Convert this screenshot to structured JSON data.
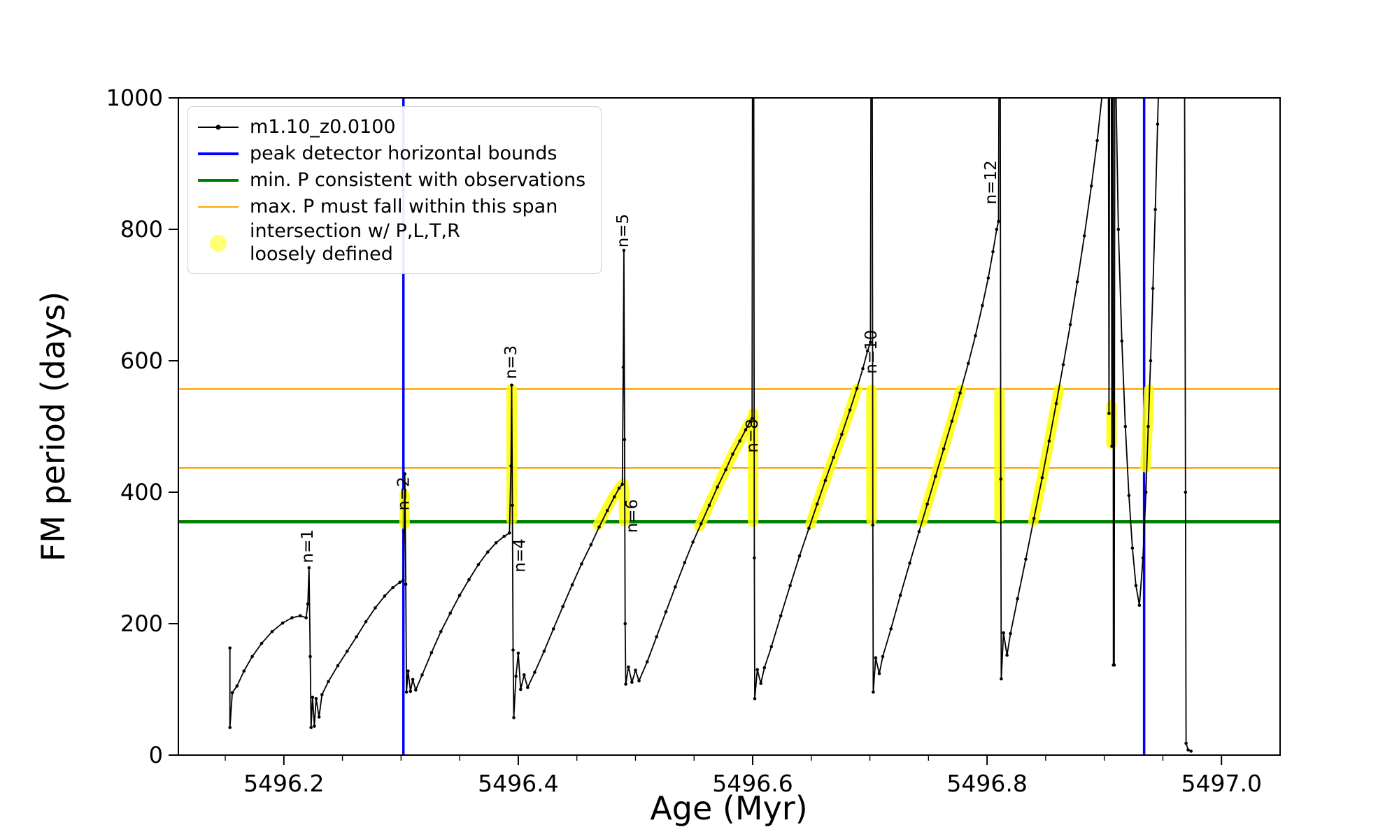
{
  "chart_data": {
    "type": "line",
    "title": "",
    "xlabel": "Age (Myr)",
    "ylabel": "FM period (days)",
    "xlim": [
      5496.11,
      5497.05
    ],
    "ylim": [
      0,
      1000
    ],
    "xticks": [
      5496.2,
      5496.4,
      5496.6,
      5496.8,
      5497.0
    ],
    "xtick_labels": [
      "5496.2",
      "5496.4",
      "5496.6",
      "5496.8",
      "5497.0"
    ],
    "xminor_step": 0.05,
    "yticks": [
      0,
      200,
      400,
      600,
      800,
      1000
    ],
    "ytick_labels": [
      "0",
      "200",
      "400",
      "600",
      "800",
      "1000"
    ],
    "grid": false,
    "legend": {
      "position": "upper-left",
      "entries": [
        {
          "label": "m1.10_z0.0100",
          "type": "line-dot",
          "color": "#000000",
          "width": 2
        },
        {
          "label": "peak detector horizontal bounds",
          "type": "line",
          "color": "#0000ff",
          "width": 4
        },
        {
          "label": "min. P consistent with observations",
          "type": "line",
          "color": "#008000",
          "width": 4.5
        },
        {
          "label": "max. P must fall within this span",
          "type": "line",
          "color": "#ffa500",
          "width": 2.5
        },
        {
          "label": "intersection w/ P,L,T,R loosely defined",
          "label_lines": [
            "intersection w/ P,L,T,R",
            "loosely defined"
          ],
          "type": "marker",
          "color": "#ffff00"
        }
      ]
    },
    "vlines": [
      {
        "name": "peak-detector-left-bound",
        "x": 5496.302,
        "color": "#0000ff",
        "width": 3.5
      },
      {
        "name": "peak-detector-right-bound",
        "x": 5496.934,
        "color": "#0000ff",
        "width": 3.5
      }
    ],
    "hlines": [
      {
        "name": "min-p-observations",
        "y": 355,
        "color": "#008000",
        "width": 4.5
      },
      {
        "name": "max-p-span-lower",
        "y": 437,
        "color": "#ffa500",
        "width": 2.5
      },
      {
        "name": "max-p-span-upper",
        "y": 557,
        "color": "#ffa500",
        "width": 2.5
      }
    ],
    "annotations_rotation": 90,
    "annotations": [
      {
        "text": "n=1",
        "x": 5496.2245,
        "y": 292
      },
      {
        "text": "n=2",
        "x": 5496.3068,
        "y": 372
      },
      {
        "text": "n=3",
        "x": 5496.3982,
        "y": 572
      },
      {
        "text": "n=4",
        "x": 5496.4058,
        "y": 278
      },
      {
        "text": "n=5",
        "x": 5496.4938,
        "y": 772
      },
      {
        "text": "n=6",
        "x": 5496.5015,
        "y": 338
      },
      {
        "text": "n=8",
        "x": 5496.6042,
        "y": 460
      },
      {
        "text": "n=10",
        "x": 5496.7055,
        "y": 580
      },
      {
        "text": "n=12",
        "x": 5496.8078,
        "y": 838
      }
    ],
    "highlight_segments": {
      "label": "intersection w/ P,L,T,R loosely defined",
      "color": "#ffff00",
      "opacity": 0.85,
      "width": 15,
      "segments": [
        [
          [
            5496.303,
            352
          ],
          [
            5496.303,
            396
          ]
        ],
        [
          [
            5496.3944,
            358
          ],
          [
            5496.3944,
            557
          ]
        ],
        [
          [
            5496.468,
            350
          ],
          [
            5496.476,
            376
          ],
          [
            5496.482,
            396
          ],
          [
            5496.487,
            408
          ],
          [
            5496.4896,
            413
          ],
          [
            5496.4902,
            390
          ],
          [
            5496.4905,
            356
          ]
        ],
        [
          [
            5496.5545,
            348
          ],
          [
            5496.561,
            374
          ],
          [
            5496.568,
            401
          ],
          [
            5496.575,
            428
          ],
          [
            5496.582,
            454
          ],
          [
            5496.588,
            475
          ],
          [
            5496.594,
            495
          ],
          [
            5496.598,
            508
          ],
          [
            5496.5995,
            512
          ]
        ],
        [
          [
            5496.6004,
            355
          ],
          [
            5496.6004,
            520
          ]
        ],
        [
          [
            5496.6495,
            352
          ],
          [
            5496.656,
            387
          ],
          [
            5496.663,
            423
          ],
          [
            5496.67,
            458
          ],
          [
            5496.677,
            493
          ],
          [
            5496.684,
            530
          ],
          [
            5496.689,
            557
          ]
        ],
        [
          [
            5496.7014,
            358
          ],
          [
            5496.7014,
            556
          ]
        ],
        [
          [
            5496.7445,
            355
          ],
          [
            5496.751,
            394
          ],
          [
            5496.758,
            436
          ],
          [
            5496.765,
            478
          ],
          [
            5496.772,
            521
          ],
          [
            5496.7775,
            556
          ]
        ],
        [
          [
            5496.8106,
            362
          ],
          [
            5496.8106,
            552
          ]
        ],
        [
          [
            5496.8395,
            356
          ],
          [
            5496.846,
            413
          ],
          [
            5496.852,
            469
          ],
          [
            5496.858,
            526
          ],
          [
            5496.8612,
            556
          ]
        ],
        [
          [
            5496.9062,
            474
          ],
          [
            5496.9062,
            532
          ]
        ],
        [
          [
            5496.9352,
            438
          ],
          [
            5496.9368,
            498
          ],
          [
            5496.9383,
            556
          ]
        ]
      ]
    },
    "series": [
      {
        "name": "m1.10_z0.0100",
        "color": "#000000",
        "line_width": 1.8,
        "marker_radius": 2.3,
        "points": [
          [
            5496.154,
            163
          ],
          [
            5496.154,
            42
          ],
          [
            5496.156,
            95
          ],
          [
            5496.16,
            105
          ],
          [
            5496.166,
            128
          ],
          [
            5496.173,
            150
          ],
          [
            5496.181,
            170
          ],
          [
            5496.19,
            188
          ],
          [
            5496.199,
            201
          ],
          [
            5496.207,
            209
          ],
          [
            5496.214,
            212
          ],
          [
            5496.219,
            209
          ],
          [
            5496.2205,
            230
          ],
          [
            5496.2215,
            285
          ],
          [
            5496.2225,
            150
          ],
          [
            5496.2232,
            42
          ],
          [
            5496.2245,
            88
          ],
          [
            5496.226,
            44
          ],
          [
            5496.2275,
            86
          ],
          [
            5496.23,
            58
          ],
          [
            5496.2325,
            92
          ],
          [
            5496.238,
            112
          ],
          [
            5496.246,
            136
          ],
          [
            5496.254,
            158
          ],
          [
            5496.262,
            180
          ],
          [
            5496.27,
            203
          ],
          [
            5496.278,
            224
          ],
          [
            5496.286,
            242
          ],
          [
            5496.293,
            255
          ],
          [
            5496.299,
            263
          ],
          [
            5496.3018,
            266
          ],
          [
            5496.3026,
            340
          ],
          [
            5496.3032,
            428
          ],
          [
            5496.304,
            260
          ],
          [
            5496.3046,
            96
          ],
          [
            5496.306,
            128
          ],
          [
            5496.308,
            97
          ],
          [
            5496.31,
            115
          ],
          [
            5496.3125,
            99
          ],
          [
            5496.318,
            122
          ],
          [
            5496.326,
            156
          ],
          [
            5496.334,
            188
          ],
          [
            5496.342,
            216
          ],
          [
            5496.35,
            243
          ],
          [
            5496.358,
            267
          ],
          [
            5496.366,
            290
          ],
          [
            5496.374,
            309
          ],
          [
            5496.381,
            323
          ],
          [
            5496.388,
            333
          ],
          [
            5496.3925,
            338
          ],
          [
            5496.3938,
            440
          ],
          [
            5496.3944,
            563
          ],
          [
            5496.395,
            380
          ],
          [
            5496.3956,
            160
          ],
          [
            5496.3962,
            57
          ],
          [
            5496.398,
            120
          ],
          [
            5496.4,
            155
          ],
          [
            5496.402,
            100
          ],
          [
            5496.405,
            122
          ],
          [
            5496.408,
            103
          ],
          [
            5496.414,
            126
          ],
          [
            5496.422,
            158
          ],
          [
            5496.43,
            192
          ],
          [
            5496.438,
            226
          ],
          [
            5496.446,
            259
          ],
          [
            5496.454,
            291
          ],
          [
            5496.462,
            320
          ],
          [
            5496.469,
            347
          ],
          [
            5496.476,
            372
          ],
          [
            5496.482,
            393
          ],
          [
            5496.486,
            406
          ],
          [
            5496.4888,
            412
          ],
          [
            5496.4896,
            590
          ],
          [
            5496.4901,
            768
          ],
          [
            5496.4907,
            480
          ],
          [
            5496.4912,
            200
          ],
          [
            5496.4917,
            108
          ],
          [
            5496.494,
            134
          ],
          [
            5496.497,
            111
          ],
          [
            5496.5,
            129
          ],
          [
            5496.503,
            113
          ],
          [
            5496.51,
            142
          ],
          [
            5496.518,
            180
          ],
          [
            5496.526,
            218
          ],
          [
            5496.534,
            256
          ],
          [
            5496.542,
            293
          ],
          [
            5496.549,
            324
          ],
          [
            5496.556,
            352
          ],
          [
            5496.563,
            380
          ],
          [
            5496.57,
            408
          ],
          [
            5496.577,
            434
          ],
          [
            5496.583,
            458
          ],
          [
            5496.589,
            478
          ],
          [
            5496.594,
            495
          ],
          [
            5496.598,
            508
          ],
          [
            5496.5995,
            512
          ],
          [
            5496.5999,
            1060
          ],
          [
            5496.6009,
            1060
          ],
          [
            5496.6014,
            300
          ],
          [
            5496.6018,
            86
          ],
          [
            5496.604,
            130
          ],
          [
            5496.607,
            109
          ],
          [
            5496.61,
            133
          ],
          [
            5496.616,
            165
          ],
          [
            5496.624,
            212
          ],
          [
            5496.632,
            258
          ],
          [
            5496.64,
            303
          ],
          [
            5496.648,
            345
          ],
          [
            5496.655,
            382
          ],
          [
            5496.662,
            418
          ],
          [
            5496.669,
            453
          ],
          [
            5496.676,
            488
          ],
          [
            5496.683,
            525
          ],
          [
            5496.689,
            558
          ],
          [
            5496.694,
            588
          ],
          [
            5496.698,
            615
          ],
          [
            5496.7005,
            628
          ],
          [
            5496.701,
            1060
          ],
          [
            5496.702,
            1060
          ],
          [
            5496.7025,
            350
          ],
          [
            5496.7029,
            96
          ],
          [
            5496.705,
            148
          ],
          [
            5496.708,
            124
          ],
          [
            5496.711,
            150
          ],
          [
            5496.718,
            192
          ],
          [
            5496.726,
            243
          ],
          [
            5496.734,
            292
          ],
          [
            5496.742,
            340
          ],
          [
            5496.749,
            382
          ],
          [
            5496.756,
            424
          ],
          [
            5496.763,
            466
          ],
          [
            5496.77,
            508
          ],
          [
            5496.777,
            551
          ],
          [
            5496.784,
            596
          ],
          [
            5496.79,
            638
          ],
          [
            5496.796,
            684
          ],
          [
            5496.801,
            726
          ],
          [
            5496.805,
            766
          ],
          [
            5496.8082,
            800
          ],
          [
            5496.8098,
            812
          ],
          [
            5496.8102,
            1060
          ],
          [
            5496.8112,
            1060
          ],
          [
            5496.8117,
            420
          ],
          [
            5496.8121,
            116
          ],
          [
            5496.814,
            186
          ],
          [
            5496.817,
            152
          ],
          [
            5496.82,
            185
          ],
          [
            5496.826,
            238
          ],
          [
            5496.833,
            298
          ],
          [
            5496.84,
            360
          ],
          [
            5496.847,
            422
          ],
          [
            5496.853,
            478
          ],
          [
            5496.859,
            535
          ],
          [
            5496.865,
            594
          ],
          [
            5496.871,
            655
          ],
          [
            5496.877,
            720
          ],
          [
            5496.883,
            790
          ],
          [
            5496.889,
            866
          ],
          [
            5496.894,
            935
          ],
          [
            5496.898,
            1002
          ],
          [
            5496.9,
            1060
          ],
          [
            5496.9035,
            1060
          ],
          [
            5496.904,
            520
          ],
          [
            5496.9045,
            1060
          ],
          [
            5496.906,
            1060
          ],
          [
            5496.9065,
            470
          ],
          [
            5496.907,
            1060
          ],
          [
            5496.9075,
            1060
          ],
          [
            5496.9078,
            137
          ],
          [
            5496.9085,
            137
          ],
          [
            5496.909,
            1060
          ],
          [
            5496.9095,
            1060
          ],
          [
            5496.912,
            800
          ],
          [
            5496.915,
            630
          ],
          [
            5496.918,
            500
          ],
          [
            5496.921,
            395
          ],
          [
            5496.924,
            315
          ],
          [
            5496.927,
            258
          ],
          [
            5496.93,
            228
          ],
          [
            5496.933,
            300
          ],
          [
            5496.9355,
            400
          ],
          [
            5496.9375,
            500
          ],
          [
            5496.9395,
            600
          ],
          [
            5496.9415,
            710
          ],
          [
            5496.9435,
            830
          ],
          [
            5496.9455,
            960
          ],
          [
            5496.947,
            1060
          ],
          [
            5496.9685,
            1060
          ],
          [
            5496.9693,
            400
          ],
          [
            5496.9698,
            18
          ],
          [
            5496.9715,
            8
          ],
          [
            5496.974,
            6
          ]
        ]
      }
    ]
  }
}
